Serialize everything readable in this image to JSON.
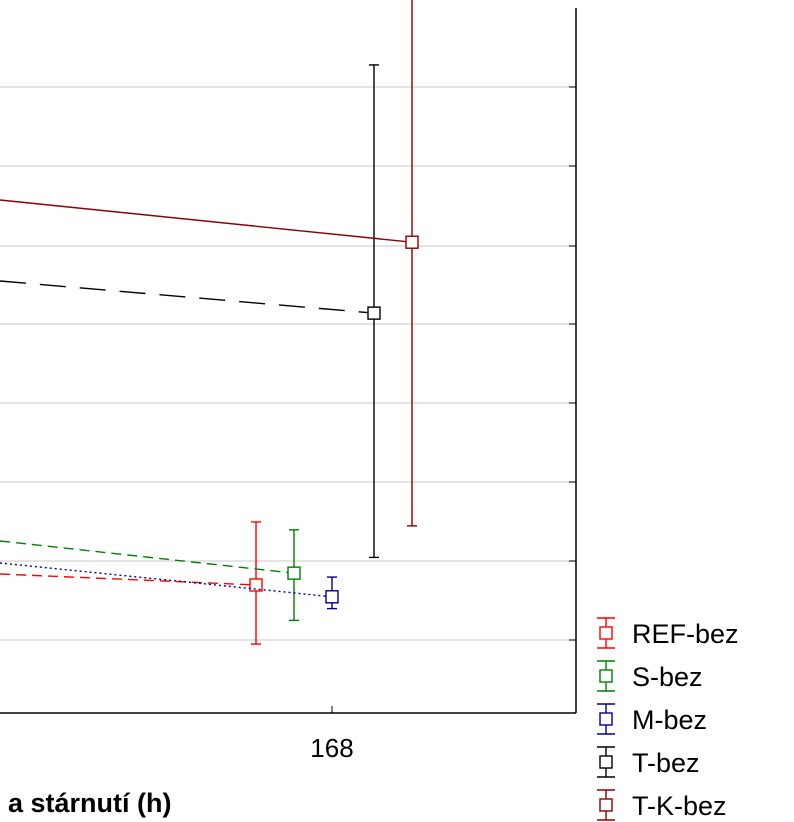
{
  "chart_data": {
    "type": "line",
    "xlabel": "a stárnutí (h)",
    "x_ticks": [
      168
    ],
    "grid": true,
    "legend_position": "right",
    "series": [
      {
        "name": "REF-bez",
        "color": "#ff0000",
        "line_style": "dashed",
        "points": [
          {
            "x": 168,
            "y": 3.3,
            "err_low": 1.8,
            "err_high": 4.9
          }
        ]
      },
      {
        "name": "S-bez",
        "color": "#008000",
        "line_style": "dashed",
        "points": [
          {
            "x": 168,
            "y": 3.6,
            "err_low": 2.4,
            "err_high": 4.7
          }
        ]
      },
      {
        "name": "M-bez",
        "color": "#00008b",
        "line_style": "dotted",
        "points": [
          {
            "x": 168,
            "y": 3.0,
            "err_low": 2.7,
            "err_high": 3.5
          }
        ]
      },
      {
        "name": "T-bez",
        "color": "#000000",
        "line_style": "long-dash",
        "points": [
          {
            "x": 168,
            "y": 10.2,
            "err_low": 4.0,
            "err_high": 16.5
          }
        ]
      },
      {
        "name": "T-K-bez",
        "color": "#8b0000",
        "line_style": "solid",
        "points": [
          {
            "x": 168,
            "y": 12.0,
            "err_low": 4.8,
            "err_high": 19.3
          }
        ]
      }
    ]
  }
}
